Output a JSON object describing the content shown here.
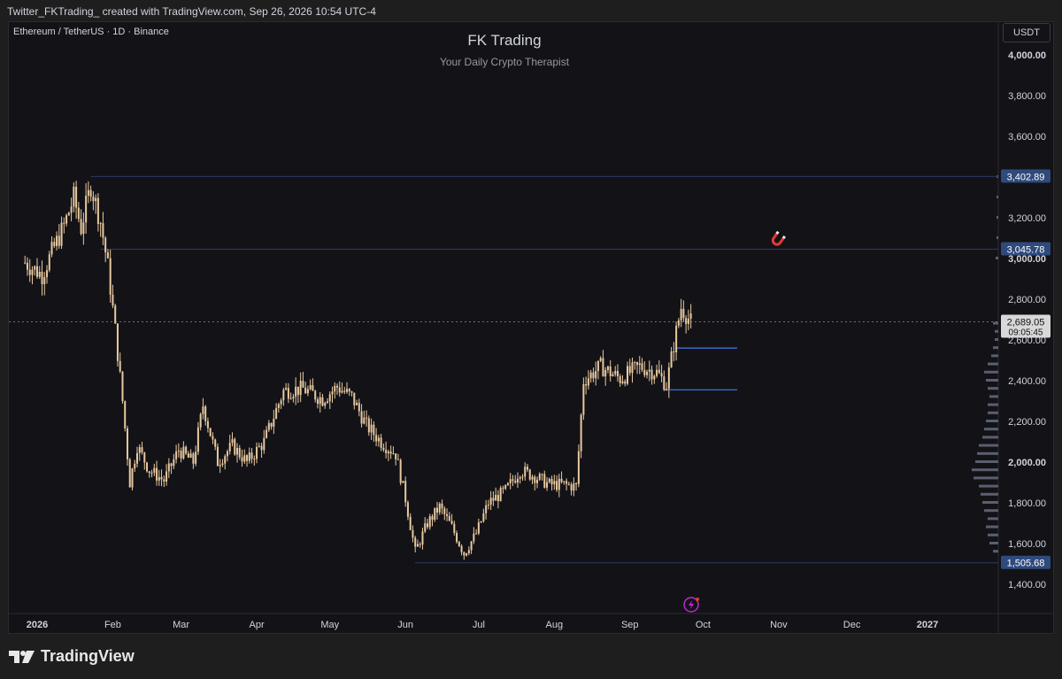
{
  "header": {
    "caption": "Twitter_FKTrading_ created with TradingView.com, Sep 26, 2026 10:54 UTC-4"
  },
  "chart_meta": {
    "symbol": "Ethereum / TetherUS · 1D · Binance",
    "currency_button": "USDT",
    "current_price_label": "2,689.05",
    "countdown_label": "09:05:45"
  },
  "footer": {
    "brand": "TradingView"
  },
  "colors": {
    "background": "#131317",
    "candle": "#e8c9a0",
    "level_line": "#2d3a66",
    "level_box": "#2f4a7c",
    "accent": "#c026d3"
  },
  "chart_data": {
    "type": "candlestick",
    "title": "FK Trading",
    "subtitle": "Your Daily Crypto Therapist",
    "ylim": [
      1300,
      4100
    ],
    "y_ticks": [
      {
        "value": 4000,
        "label": "4,000.00"
      },
      {
        "value": 3800,
        "label": "3,800.00"
      },
      {
        "value": 3600,
        "label": "3,600.00"
      },
      {
        "value": 3200,
        "label": "3,200.00"
      },
      {
        "value": 3000,
        "label": "3,000.00"
      },
      {
        "value": 2800,
        "label": "2,800.00"
      },
      {
        "value": 2600,
        "label": "2,600.00"
      },
      {
        "value": 2400,
        "label": "2,400.00"
      },
      {
        "value": 2200,
        "label": "2,200.00"
      },
      {
        "value": 2000,
        "label": "2,000.00"
      },
      {
        "value": 1800,
        "label": "1,800.00"
      },
      {
        "value": 1600,
        "label": "1,600.00"
      },
      {
        "value": 1400,
        "label": "1,400.00"
      }
    ],
    "x_ticks": [
      {
        "label": "2026",
        "date": "2026-01-01",
        "bold": true
      },
      {
        "label": "Feb",
        "date": "2026-02-01"
      },
      {
        "label": "Mar",
        "date": "2026-03-01"
      },
      {
        "label": "Apr",
        "date": "2026-04-01"
      },
      {
        "label": "May",
        "date": "2026-05-01"
      },
      {
        "label": "Jun",
        "date": "2026-06-01"
      },
      {
        "label": "Jul",
        "date": "2026-07-01"
      },
      {
        "label": "Aug",
        "date": "2026-08-01"
      },
      {
        "label": "Sep",
        "date": "2026-09-01"
      },
      {
        "label": "Oct",
        "date": "2026-10-01"
      },
      {
        "label": "Nov",
        "date": "2026-11-01"
      },
      {
        "label": "Dec",
        "date": "2026-12-01"
      },
      {
        "label": "2027",
        "date": "2027-01-01",
        "bold": true
      }
    ],
    "horizontal_levels": [
      {
        "value": 3402.89,
        "label": "3,402.89",
        "from": "2026-01-23"
      },
      {
        "value": 3045.78,
        "label": "3,045.78",
        "from": "2026-01-27"
      },
      {
        "value": 1505.68,
        "label": "1,505.68",
        "from": "2026-06-05"
      }
    ],
    "current_price": 2689.05,
    "zones": [
      {
        "value": 2560,
        "from": "2026-09-20",
        "to": "2026-10-15"
      },
      {
        "value": 2355,
        "from": "2026-09-15",
        "to": "2026-10-15"
      }
    ],
    "price_path": [
      {
        "date": "2025-12-27",
        "close": 2980
      },
      {
        "date": "2026-01-03",
        "close": 2920
      },
      {
        "date": "2026-01-07",
        "close": 3030
      },
      {
        "date": "2026-01-12",
        "close": 3160
      },
      {
        "date": "2026-01-16",
        "close": 3300
      },
      {
        "date": "2026-01-19",
        "close": 3150
      },
      {
        "date": "2026-01-23",
        "close": 3360
      },
      {
        "date": "2026-01-27",
        "close": 3180
      },
      {
        "date": "2026-01-30",
        "close": 2960
      },
      {
        "date": "2026-02-02",
        "close": 2650
      },
      {
        "date": "2026-02-05",
        "close": 2300
      },
      {
        "date": "2026-02-08",
        "close": 1900
      },
      {
        "date": "2026-02-11",
        "close": 2080
      },
      {
        "date": "2026-02-16",
        "close": 1960
      },
      {
        "date": "2026-02-22",
        "close": 1910
      },
      {
        "date": "2026-02-28",
        "close": 2060
      },
      {
        "date": "2026-03-06",
        "close": 2000
      },
      {
        "date": "2026-03-10",
        "close": 2280
      },
      {
        "date": "2026-03-16",
        "close": 2000
      },
      {
        "date": "2026-03-22",
        "close": 2080
      },
      {
        "date": "2026-03-28",
        "close": 2000
      },
      {
        "date": "2026-04-04",
        "close": 2100
      },
      {
        "date": "2026-04-12",
        "close": 2350
      },
      {
        "date": "2026-04-20",
        "close": 2360
      },
      {
        "date": "2026-04-28",
        "close": 2310
      },
      {
        "date": "2026-05-04",
        "close": 2370
      },
      {
        "date": "2026-05-10",
        "close": 2320
      },
      {
        "date": "2026-05-16",
        "close": 2180
      },
      {
        "date": "2026-05-22",
        "close": 2100
      },
      {
        "date": "2026-05-28",
        "close": 2040
      },
      {
        "date": "2026-06-01",
        "close": 1820
      },
      {
        "date": "2026-06-05",
        "close": 1560
      },
      {
        "date": "2026-06-10",
        "close": 1700
      },
      {
        "date": "2026-06-15",
        "close": 1780
      },
      {
        "date": "2026-06-20",
        "close": 1680
      },
      {
        "date": "2026-06-25",
        "close": 1550
      },
      {
        "date": "2026-06-30",
        "close": 1650
      },
      {
        "date": "2026-07-05",
        "close": 1800
      },
      {
        "date": "2026-07-12",
        "close": 1860
      },
      {
        "date": "2026-07-18",
        "close": 1960
      },
      {
        "date": "2026-07-24",
        "close": 1930
      },
      {
        "date": "2026-07-30",
        "close": 1890
      },
      {
        "date": "2026-08-05",
        "close": 1890
      },
      {
        "date": "2026-08-10",
        "close": 1880
      },
      {
        "date": "2026-08-13",
        "close": 2400
      },
      {
        "date": "2026-08-20",
        "close": 2470
      },
      {
        "date": "2026-08-28",
        "close": 2410
      },
      {
        "date": "2026-09-05",
        "close": 2470
      },
      {
        "date": "2026-09-12",
        "close": 2440
      },
      {
        "date": "2026-09-16",
        "close": 2380
      },
      {
        "date": "2026-09-20",
        "close": 2640
      },
      {
        "date": "2026-09-22",
        "close": 2760
      },
      {
        "date": "2026-09-26",
        "close": 2689
      }
    ]
  }
}
